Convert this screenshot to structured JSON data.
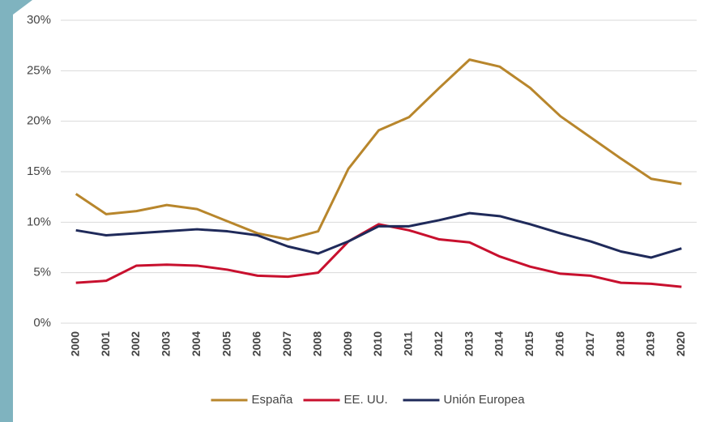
{
  "chart_data": {
    "type": "line",
    "categories": [
      "2000",
      "2001",
      "2002",
      "2003",
      "2004",
      "2005",
      "2006",
      "2007",
      "2008",
      "2009",
      "2010",
      "2011",
      "2012",
      "2013",
      "2014",
      "2015",
      "2016",
      "2017",
      "2018",
      "2019",
      "2020"
    ],
    "series": [
      {
        "name": "España",
        "color": "#b8862c",
        "values": [
          12.8,
          10.8,
          11.1,
          11.7,
          11.3,
          10.1,
          8.9,
          8.3,
          9.1,
          15.3,
          19.1,
          20.4,
          23.3,
          26.1,
          25.4,
          23.3,
          20.5,
          18.4,
          16.3,
          14.3,
          13.8
        ]
      },
      {
        "name": "EE. UU.",
        "color": "#c8102e",
        "values": [
          4.0,
          4.2,
          5.7,
          5.8,
          5.7,
          5.3,
          4.7,
          4.6,
          5.0,
          8.1,
          9.8,
          9.2,
          8.3,
          8.0,
          6.6,
          5.6,
          4.9,
          4.7,
          4.0,
          3.9,
          3.6
        ]
      },
      {
        "name": "Unión Europea",
        "color": "#1f2a5a",
        "values": [
          9.2,
          8.7,
          8.9,
          9.1,
          9.3,
          9.1,
          8.7,
          7.6,
          6.9,
          8.1,
          9.6,
          9.6,
          10.2,
          10.9,
          10.6,
          9.8,
          8.9,
          8.1,
          7.1,
          6.5,
          7.4
        ]
      }
    ],
    "ylim": [
      0,
      30
    ],
    "yticks": [
      {
        "value": 0,
        "label": "0%"
      },
      {
        "value": 5,
        "label": "5%"
      },
      {
        "value": 10,
        "label": "10%"
      },
      {
        "value": 15,
        "label": "15%"
      },
      {
        "value": 20,
        "label": "20%"
      },
      {
        "value": 25,
        "label": "25%"
      },
      {
        "value": 30,
        "label": "30%"
      }
    ],
    "grid": true,
    "legend": "bottom"
  }
}
